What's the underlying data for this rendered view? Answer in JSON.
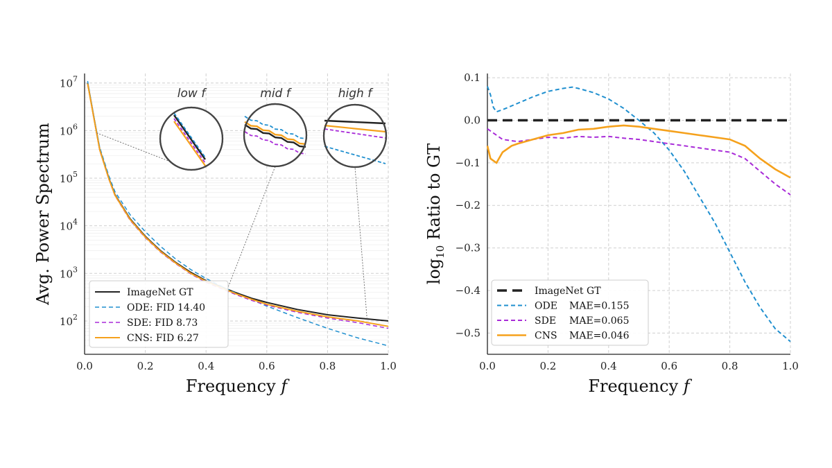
{
  "chart_data": [
    {
      "type": "line",
      "xlabel": "Frequency",
      "xlabel_var": "f",
      "ylabel": "Avg. Power Spectrum",
      "xlim": [
        0,
        1
      ],
      "ylim_log10": [
        1.3,
        7.2
      ],
      "yscale": "log",
      "grid": true,
      "legend_position": "lower-left",
      "x_ticks": [
        "0.0",
        "0.2",
        "0.4",
        "0.6",
        "0.8",
        "1.0"
      ],
      "y_ticks": [
        {
          "base": "10",
          "exp": "2"
        },
        {
          "base": "10",
          "exp": "3"
        },
        {
          "base": "10",
          "exp": "4"
        },
        {
          "base": "10",
          "exp": "5"
        },
        {
          "base": "10",
          "exp": "6"
        },
        {
          "base": "10",
          "exp": "7"
        }
      ],
      "inset_labels": [
        "low f",
        "mid f",
        "high f"
      ],
      "series": [
        {
          "name": "ImageNet GT",
          "color": "#222222",
          "style": "solid",
          "x": [
            0.01,
            0.03,
            0.05,
            0.08,
            0.1,
            0.15,
            0.2,
            0.25,
            0.3,
            0.35,
            0.4,
            0.45,
            0.5,
            0.55,
            0.6,
            0.7,
            0.8,
            0.9,
            1.0
          ],
          "y": [
            10000000,
            2000000,
            400000,
            100000,
            45000,
            14000,
            6000,
            3000,
            1700,
            1050,
            700,
            520,
            390,
            300,
            245,
            175,
            135,
            115,
            100
          ]
        },
        {
          "name": "ODE: FID 14.40",
          "color": "#1f8fcf",
          "style": "dashed",
          "x": [
            0.01,
            0.03,
            0.05,
            0.08,
            0.1,
            0.15,
            0.2,
            0.25,
            0.3,
            0.35,
            0.4,
            0.45,
            0.5,
            0.55,
            0.6,
            0.7,
            0.8,
            0.9,
            1.0
          ],
          "y": [
            11000000,
            2100000,
            440000,
            112000,
            52000,
            17000,
            7500,
            3700,
            2000,
            1200,
            780,
            540,
            380,
            280,
            205,
            118,
            70,
            44,
            30
          ]
        },
        {
          "name": "SDE: FID 8.73",
          "color": "#a82ad8",
          "style": "dashed",
          "x": [
            0.01,
            0.03,
            0.05,
            0.08,
            0.1,
            0.15,
            0.2,
            0.25,
            0.3,
            0.35,
            0.4,
            0.45,
            0.5,
            0.55,
            0.6,
            0.7,
            0.8,
            0.9,
            1.0
          ],
          "y": [
            9500000,
            1900000,
            380000,
            95000,
            43000,
            13000,
            5600,
            2800,
            1600,
            970,
            650,
            480,
            355,
            270,
            215,
            152,
            115,
            92,
            70
          ]
        },
        {
          "name": "CNS: FID 6.27",
          "color": "#f5a11c",
          "style": "solid",
          "x": [
            0.01,
            0.03,
            0.05,
            0.08,
            0.1,
            0.15,
            0.2,
            0.25,
            0.3,
            0.35,
            0.4,
            0.45,
            0.5,
            0.55,
            0.6,
            0.7,
            0.8,
            0.9,
            1.0
          ],
          "y": [
            9700000,
            1950000,
            390000,
            97000,
            44000,
            13500,
            5800,
            2900,
            1650,
            1000,
            680,
            500,
            370,
            285,
            225,
            160,
            122,
            100,
            77
          ]
        }
      ]
    },
    {
      "type": "line",
      "xlabel": "Frequency",
      "xlabel_var": "f",
      "ylabel_prefix": "log",
      "ylabel_sub": "10",
      "ylabel_rest": " Ratio to GT",
      "xlim": [
        0,
        1
      ],
      "ylim": [
        -0.55,
        0.11
      ],
      "grid": true,
      "legend_position": "lower-left",
      "x_ticks": [
        "0.0",
        "0.2",
        "0.4",
        "0.6",
        "0.8",
        "1.0"
      ],
      "y_ticks": [
        "0.1",
        "0.0",
        "−0.1",
        "−0.2",
        "−0.3",
        "−0.4",
        "−0.5"
      ],
      "series": [
        {
          "name": "ImageNet GT",
          "label_metric": "",
          "color": "#222222",
          "style": "dashed-thick",
          "x": [
            0.0,
            1.0
          ],
          "y": [
            0.0,
            0.0
          ]
        },
        {
          "name": "ODE",
          "label_metric": "MAE=0.155",
          "color": "#1f8fcf",
          "style": "dashed",
          "x": [
            0.0,
            0.01,
            0.02,
            0.03,
            0.05,
            0.1,
            0.15,
            0.2,
            0.25,
            0.28,
            0.3,
            0.35,
            0.4,
            0.45,
            0.5,
            0.55,
            0.6,
            0.65,
            0.7,
            0.75,
            0.8,
            0.85,
            0.9,
            0.95,
            1.0
          ],
          "y": [
            0.08,
            0.06,
            0.03,
            0.02,
            0.025,
            0.04,
            0.055,
            0.068,
            0.075,
            0.078,
            0.075,
            0.065,
            0.05,
            0.028,
            0.0,
            -0.03,
            -0.07,
            -0.12,
            -0.18,
            -0.24,
            -0.31,
            -0.38,
            -0.44,
            -0.49,
            -0.52
          ]
        },
        {
          "name": "SDE",
          "label_metric": "MAE=0.065",
          "color": "#a82ad8",
          "style": "dashed",
          "x": [
            0.0,
            0.02,
            0.05,
            0.1,
            0.15,
            0.2,
            0.25,
            0.3,
            0.35,
            0.4,
            0.45,
            0.5,
            0.55,
            0.6,
            0.65,
            0.7,
            0.75,
            0.8,
            0.85,
            0.9,
            0.95,
            1.0
          ],
          "y": [
            -0.02,
            -0.03,
            -0.045,
            -0.05,
            -0.045,
            -0.04,
            -0.042,
            -0.038,
            -0.04,
            -0.038,
            -0.042,
            -0.045,
            -0.05,
            -0.055,
            -0.06,
            -0.065,
            -0.07,
            -0.075,
            -0.09,
            -0.12,
            -0.15,
            -0.175
          ]
        },
        {
          "name": "CNS",
          "label_metric": "MAE=0.046",
          "color": "#f5a11c",
          "style": "solid",
          "x": [
            0.0,
            0.01,
            0.02,
            0.03,
            0.05,
            0.08,
            0.1,
            0.15,
            0.2,
            0.25,
            0.3,
            0.35,
            0.4,
            0.45,
            0.5,
            0.55,
            0.6,
            0.65,
            0.7,
            0.75,
            0.8,
            0.85,
            0.9,
            0.95,
            1.0
          ],
          "y": [
            -0.06,
            -0.09,
            -0.095,
            -0.1,
            -0.075,
            -0.06,
            -0.055,
            -0.045,
            -0.035,
            -0.03,
            -0.022,
            -0.02,
            -0.015,
            -0.012,
            -0.015,
            -0.02,
            -0.025,
            -0.03,
            -0.035,
            -0.04,
            -0.045,
            -0.06,
            -0.09,
            -0.115,
            -0.135
          ]
        }
      ]
    }
  ]
}
